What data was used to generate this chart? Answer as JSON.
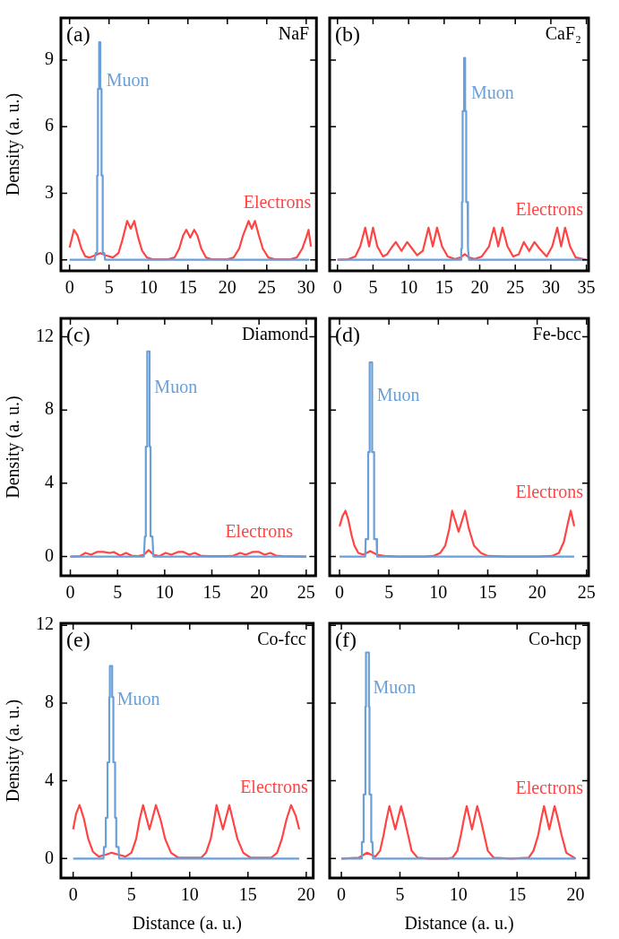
{
  "chart_data": [
    {
      "type": "line",
      "title": "NaF",
      "annotations": [
        "(a)"
      ],
      "ylabel": "Density (a. u.)",
      "xlim": [
        -1.1,
        31.3
      ],
      "xticks": [
        0,
        5,
        10,
        15,
        20,
        25,
        30
      ],
      "ylim": [
        -0.5,
        10.9
      ],
      "yticks": [
        0,
        3,
        6,
        9
      ],
      "series": [
        {
          "name": "Muon",
          "color": "#6a9fd8",
          "x": [
            0,
            3.2,
            3.3,
            3.5,
            3.5,
            3.6,
            3.6,
            3.75,
            3.75,
            3.9,
            3.9,
            4.05,
            4.05,
            4.2,
            4.2,
            4.4,
            4.5,
            30.4
          ],
          "values": [
            0,
            0,
            0.3,
            0.3,
            3.8,
            3.8,
            7.7,
            7.7,
            9.8,
            9.8,
            7.7,
            7.7,
            3.8,
            3.8,
            0.3,
            0.3,
            0,
            0
          ]
        },
        {
          "name": "Electrons",
          "color": "#ff4444",
          "x": [
            0,
            0.55,
            1.0,
            1.5,
            2.0,
            2.5,
            3.2,
            3.9,
            4.6,
            5.5,
            6.2,
            6.7,
            7.3,
            7.75,
            8.2,
            8.7,
            9.2,
            9.8,
            10.5,
            12.5,
            13.3,
            13.9,
            14.4,
            14.8,
            15.3,
            15.8,
            16.2,
            16.7,
            17.3,
            18.0,
            20.0,
            20.8,
            21.5,
            22.0,
            22.7,
            23.1,
            23.5,
            24.0,
            24.5,
            25.2,
            26.0,
            28.0,
            28.8,
            29.5,
            30.0,
            30.3,
            30.6
          ],
          "values": [
            0.55,
            1.35,
            1.1,
            0.5,
            0.15,
            0.1,
            0.2,
            0.3,
            0.2,
            0.1,
            0.3,
            0.9,
            1.75,
            1.4,
            1.75,
            1.0,
            0.4,
            0.1,
            0.02,
            0.02,
            0.1,
            0.5,
            1.1,
            1.35,
            1.0,
            1.35,
            1.1,
            0.5,
            0.1,
            0.02,
            0.02,
            0.1,
            0.5,
            1.1,
            1.75,
            1.4,
            1.75,
            1.1,
            0.5,
            0.1,
            0.02,
            0.02,
            0.1,
            0.5,
            1.0,
            1.35,
            0.6
          ]
        }
      ]
    },
    {
      "type": "line",
      "title": "CaF₂",
      "annotations": [
        "(b)"
      ],
      "xlim": [
        -1.1,
        35.3
      ],
      "xticks": [
        0,
        5,
        10,
        15,
        20,
        25,
        30,
        35
      ],
      "ylim": [
        -0.5,
        10.9
      ],
      "yticks": [
        0,
        3,
        6,
        9
      ],
      "tick_labels": "x",
      "series": [
        {
          "name": "Muon",
          "color": "#6a9fd8",
          "x": [
            0,
            17.3,
            17.4,
            17.5,
            17.5,
            17.6,
            17.6,
            17.8,
            17.8,
            17.95,
            17.95,
            18.1,
            18.1,
            18.3,
            18.3,
            18.4,
            18.5,
            35
          ],
          "values": [
            0,
            0,
            0.5,
            0.5,
            2.6,
            2.6,
            6.7,
            6.7,
            9.1,
            9.1,
            6.7,
            6.7,
            2.6,
            2.6,
            0.5,
            0.5,
            0,
            0
          ]
        },
        {
          "name": "Electrons",
          "color": "#ff4444",
          "x": [
            0,
            1.5,
            2.5,
            3.2,
            3.9,
            4.45,
            5.0,
            5.6,
            6.4,
            7.0,
            7.6,
            8.2,
            9.0,
            9.8,
            10.5,
            11.2,
            12.0,
            12.8,
            13.4,
            14.0,
            14.7,
            15.5,
            16.5,
            17.3,
            17.9,
            18.5,
            19.3,
            20.3,
            21.3,
            22.0,
            22.6,
            23.2,
            23.9,
            24.7,
            25.5,
            26.2,
            26.95,
            27.7,
            28.4,
            29.4,
            30.2,
            30.9,
            31.45,
            32.0,
            32.7,
            33.5,
            35.0
          ],
          "values": [
            0,
            0.02,
            0.15,
            0.6,
            1.45,
            0.6,
            1.45,
            0.6,
            0.15,
            0.25,
            0.55,
            0.8,
            0.4,
            0.8,
            0.5,
            0.2,
            0.4,
            1.45,
            0.6,
            1.45,
            0.6,
            0.15,
            0.03,
            0.1,
            0.25,
            0.1,
            0.03,
            0.15,
            0.6,
            1.45,
            0.6,
            1.45,
            0.6,
            0.15,
            0.25,
            0.8,
            0.4,
            0.8,
            0.5,
            0.15,
            0.6,
            1.45,
            0.6,
            1.45,
            0.6,
            0.1,
            0
          ]
        }
      ]
    },
    {
      "type": "line",
      "title": "Diamond",
      "annotations": [
        "(c)"
      ],
      "ylabel": "Density (a. u.)",
      "xlim": [
        -1.0,
        26.0
      ],
      "xticks": [
        0,
        5,
        10,
        15,
        20,
        25
      ],
      "ylim": [
        -1.05,
        13
      ],
      "yticks": [
        0,
        4,
        8,
        12
      ],
      "series": [
        {
          "name": "Muon",
          "color": "#6a9fd8",
          "x": [
            0,
            7.8,
            7.9,
            8.0,
            8.0,
            8.15,
            8.15,
            8.4,
            8.4,
            8.5,
            8.5,
            8.7,
            8.8,
            25
          ],
          "values": [
            0,
            0,
            1.1,
            1.1,
            6.0,
            6.0,
            11.2,
            11.2,
            6.0,
            6.0,
            1.1,
            1.1,
            0,
            0
          ]
        },
        {
          "name": "Electrons",
          "color": "#ff4444",
          "x": [
            0,
            1,
            1.6,
            2.2,
            2.8,
            3.5,
            4.2,
            4.6,
            5.3,
            5.9,
            6.5,
            7.2,
            7.8,
            8.3,
            8.8,
            9.4,
            10.1,
            10.7,
            11.4,
            12,
            12.6,
            13.2,
            13.8,
            14.5,
            16.5,
            17.3,
            18,
            18.6,
            19.3,
            20,
            20.6,
            21.2,
            21.8,
            22.5,
            25
          ],
          "values": [
            0,
            0.02,
            0.2,
            0.1,
            0.25,
            0.25,
            0.2,
            0.25,
            0.05,
            0.2,
            0.05,
            0.02,
            0.1,
            0.35,
            0.1,
            0.02,
            0.2,
            0.1,
            0.25,
            0.25,
            0.1,
            0.2,
            0.05,
            0.02,
            0.02,
            0.05,
            0.2,
            0.1,
            0.25,
            0.25,
            0.1,
            0.2,
            0.05,
            0.02,
            0
          ]
        }
      ]
    },
    {
      "type": "line",
      "title": "Fe-bcc",
      "annotations": [
        "(d)"
      ],
      "xlim": [
        -1.0,
        25.2
      ],
      "xticks": [
        0,
        5,
        10,
        15,
        20,
        25
      ],
      "ylim": [
        -1.05,
        13
      ],
      "yticks": [
        0,
        4,
        8,
        12
      ],
      "tick_labels": "x",
      "series": [
        {
          "name": "Muon",
          "color": "#6a9fd8",
          "x": [
            0,
            2.6,
            2.65,
            2.9,
            2.9,
            3.05,
            3.05,
            3.3,
            3.3,
            3.5,
            3.5,
            3.75,
            3.8,
            23.75
          ],
          "values": [
            0,
            0,
            0.95,
            0.95,
            5.7,
            5.7,
            10.6,
            10.6,
            5.7,
            5.7,
            0.95,
            0.95,
            0,
            0
          ]
        },
        {
          "name": "Electrons",
          "color": "#ff4444",
          "x": [
            0,
            0.3,
            0.6,
            0.9,
            1.2,
            1.5,
            1.9,
            2.4,
            3.1,
            3.8,
            4.5,
            6,
            8.5,
            9.5,
            10.2,
            10.7,
            11.1,
            11.4,
            12.05,
            12.7,
            13.1,
            13.6,
            14.3,
            15,
            17,
            20,
            21.5,
            22.2,
            22.7,
            23.1,
            23.4,
            23.75
          ],
          "values": [
            1.65,
            2.2,
            2.5,
            2.0,
            1.2,
            0.6,
            0.2,
            0.1,
            0.3,
            0.1,
            0.03,
            0,
            0,
            0.03,
            0.2,
            0.6,
            1.5,
            2.5,
            1.35,
            2.5,
            1.5,
            0.6,
            0.2,
            0.03,
            0,
            0,
            0.03,
            0.2,
            0.8,
            1.8,
            2.5,
            1.65
          ]
        }
      ]
    },
    {
      "type": "line",
      "title": "Co-fcc",
      "annotations": [
        "(e)"
      ],
      "xlabel": "Distance (a. u.)",
      "ylabel": "Density (a. u.)",
      "xlim": [
        -1.05,
        20.6
      ],
      "xticks": [
        0,
        5,
        10,
        15,
        20
      ],
      "ylim": [
        -1,
        12.1
      ],
      "yticks": [
        0,
        4,
        8,
        12
      ],
      "series": [
        {
          "name": "Muon",
          "color": "#6a9fd8",
          "x": [
            0,
            2.6,
            2.65,
            2.8,
            2.8,
            2.95,
            2.95,
            3.1,
            3.1,
            3.15,
            3.15,
            3.35,
            3.35,
            3.45,
            3.45,
            3.6,
            3.6,
            3.7,
            3.7,
            3.9,
            3.95,
            19.4
          ],
          "values": [
            0,
            0,
            0.6,
            0.6,
            2.1,
            2.1,
            4.95,
            4.95,
            8.3,
            8.3,
            9.9,
            9.9,
            8.3,
            8.3,
            4.95,
            4.95,
            2.1,
            2.1,
            0.6,
            0.6,
            0,
            0
          ]
        },
        {
          "name": "Electrons",
          "color": "#ff4444",
          "x": [
            0,
            0.25,
            0.55,
            0.9,
            1.3,
            1.7,
            2.2,
            2.8,
            3.3,
            3.9,
            4.5,
            5.0,
            5.4,
            5.7,
            6.0,
            6.55,
            7.1,
            7.5,
            7.9,
            8.4,
            9,
            11,
            11.4,
            11.8,
            12.1,
            12.3,
            12.85,
            13.4,
            13.7,
            14.1,
            14.6,
            15.2,
            17,
            17.5,
            17.9,
            18.3,
            18.7,
            19.1,
            19.4
          ],
          "values": [
            1.5,
            2.3,
            2.75,
            2.1,
            1.0,
            0.35,
            0.1,
            0.2,
            0.3,
            0.2,
            0.1,
            0.3,
            1.0,
            2.0,
            2.75,
            1.5,
            2.75,
            2.0,
            1.0,
            0.3,
            0.05,
            0.05,
            0.3,
            1.0,
            2.0,
            2.75,
            1.5,
            2.75,
            2.0,
            1.0,
            0.3,
            0.05,
            0.05,
            0.3,
            1.0,
            2.0,
            2.75,
            2.2,
            1.5
          ]
        }
      ]
    },
    {
      "type": "line",
      "title": "Co-hcp",
      "annotations": [
        "(f)"
      ],
      "xlabel": "Distance (a. u.)",
      "xlim": [
        -1.0,
        21.1
      ],
      "xticks": [
        0,
        5,
        10,
        15,
        20
      ],
      "ylim": [
        -1,
        12.1
      ],
      "yticks": [
        0,
        4,
        8,
        12
      ],
      "tick_labels": "x",
      "series": [
        {
          "name": "Muon",
          "color": "#6a9fd8",
          "x": [
            0,
            1.7,
            1.75,
            1.9,
            1.9,
            2.05,
            2.05,
            2.1,
            2.1,
            2.35,
            2.35,
            2.4,
            2.4,
            2.55,
            2.55,
            2.65,
            2.7,
            20
          ],
          "values": [
            0,
            0,
            0.85,
            0.85,
            3.3,
            3.3,
            7.8,
            7.8,
            10.6,
            10.6,
            7.8,
            7.8,
            3.3,
            3.3,
            0.85,
            0.85,
            0,
            0
          ]
        },
        {
          "name": "Electrons",
          "color": "#ff4444",
          "x": [
            0,
            1.5,
            2.2,
            2.9,
            3.3,
            3.6,
            3.85,
            4.1,
            4.6,
            5.1,
            5.4,
            5.7,
            6.0,
            6.5,
            7.5,
            9,
            9.5,
            9.9,
            10.2,
            10.45,
            10.7,
            11.15,
            11.6,
            11.9,
            12.2,
            12.5,
            13,
            14.5,
            16,
            16.4,
            16.8,
            17.05,
            17.3,
            17.75,
            18.2,
            18.5,
            18.8,
            19.2,
            20
          ],
          "values": [
            0,
            0.05,
            0.3,
            0.1,
            0.4,
            1.2,
            2.0,
            2.7,
            1.5,
            2.7,
            2.0,
            1.2,
            0.4,
            0.05,
            0,
            0,
            0.05,
            0.4,
            1.2,
            2.0,
            2.7,
            1.5,
            2.7,
            2.0,
            1.2,
            0.4,
            0.05,
            0,
            0.05,
            0.4,
            1.2,
            2.0,
            2.7,
            1.5,
            2.7,
            2.0,
            1.2,
            0.3,
            0
          ]
        }
      ]
    }
  ]
}
